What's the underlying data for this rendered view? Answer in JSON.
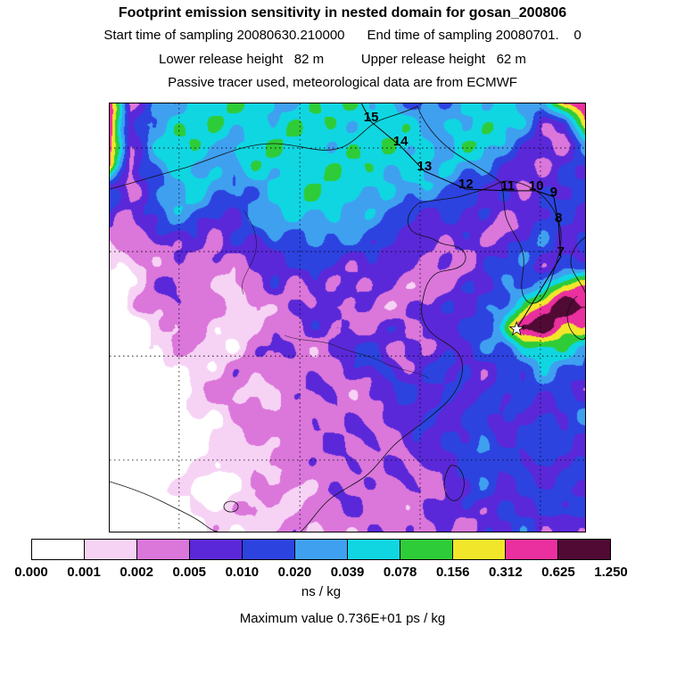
{
  "header": {
    "title": "Footprint emission sensitivity in nested domain for gosan_200806",
    "line2": "Start time of sampling 20080630.210000      End time of sampling 20080701.    0",
    "line3": "Lower release height   82 m          Upper release height   62 m",
    "line4": "Passive tracer used, meteorological data are from ECMWF"
  },
  "footer": {
    "units_label": "ns / kg",
    "max_value_label": "Maximum value  0.736E+01 ps / kg"
  },
  "chart_data": {
    "type": "heatmap",
    "title": "Footprint emission sensitivity in nested domain for gosan_200806",
    "units": "ns / kg",
    "max_value": "0.736E+01 ps / kg",
    "legend_position": "bottom",
    "levels": [
      0.0,
      0.001,
      0.002,
      0.005,
      0.01,
      0.02,
      0.039,
      0.078,
      0.156,
      0.312,
      0.625,
      1.25
    ],
    "level_labels": [
      "0.000",
      "0.001",
      "0.002",
      "0.005",
      "0.010",
      "0.020",
      "0.039",
      "0.078",
      "0.156",
      "0.312",
      "0.625",
      "1.250"
    ],
    "colors": [
      "#ffffff",
      "#f6d3f4",
      "#db76db",
      "#5a28d8",
      "#2c43e0",
      "#3fa0f0",
      "#10d6e2",
      "#2ecc38",
      "#f2e62a",
      "#ea2f9e",
      "#500a34"
    ],
    "grid": [
      [
        0.45,
        0.003,
        0.015,
        0.03,
        0.06,
        0.06,
        0.06,
        0.06,
        0.03,
        0.06,
        0.06,
        0.06,
        0.06,
        0.06,
        0.03,
        0.015,
        0.015,
        0.03,
        0.06,
        0.06,
        0.03,
        0.015,
        0.45,
        0.45
      ],
      [
        0.45,
        0.007,
        0.03,
        0.06,
        0.06,
        0.06,
        0.06,
        0.06,
        0.06,
        0.06,
        0.06,
        0.06,
        0.06,
        0.06,
        0.06,
        0.03,
        0.03,
        0.06,
        0.06,
        0.06,
        0.03,
        0.007,
        0.007,
        0.45
      ],
      [
        0.45,
        0.007,
        0.03,
        0.06,
        0.06,
        0.06,
        0.03,
        0.06,
        0.06,
        0.06,
        0.06,
        0.06,
        0.06,
        0.06,
        0.06,
        0.06,
        0.03,
        0.06,
        0.06,
        0.03,
        0.015,
        0.007,
        0.003,
        0.015
      ],
      [
        0.45,
        0.003,
        0.015,
        0.06,
        0.06,
        0.03,
        0.03,
        0.06,
        0.06,
        0.06,
        0.06,
        0.06,
        0.06,
        0.06,
        0.06,
        0.06,
        0.03,
        0.03,
        0.03,
        0.015,
        0.007,
        0.003,
        0.007,
        0.015
      ],
      [
        0.007,
        0.003,
        0.015,
        0.03,
        0.06,
        0.03,
        0.015,
        0.03,
        0.06,
        0.06,
        0.06,
        0.06,
        0.06,
        0.06,
        0.03,
        0.03,
        0.03,
        0.015,
        0.015,
        0.007,
        0.003,
        0.007,
        0.015,
        0.015
      ],
      [
        0.015,
        0.007,
        0.015,
        0.03,
        0.03,
        0.015,
        0.015,
        0.03,
        0.03,
        0.06,
        0.06,
        0.06,
        0.03,
        0.03,
        0.015,
        0.015,
        0.015,
        0.015,
        0.007,
        0.007,
        0.007,
        0.015,
        0.015,
        0.007
      ],
      [
        0.007,
        0.003,
        0.007,
        0.015,
        0.015,
        0.007,
        0.007,
        0.015,
        0.03,
        0.03,
        0.03,
        0.03,
        0.03,
        0.015,
        0.015,
        0.007,
        0.007,
        0.007,
        0.007,
        0.003,
        0.007,
        0.015,
        0.007,
        0.007
      ],
      [
        0.0012,
        0.003,
        0.003,
        0.007,
        0.007,
        0.003,
        0.007,
        0.007,
        0.015,
        0.015,
        0.015,
        0.015,
        0.015,
        0.015,
        0.007,
        0.007,
        0.003,
        0.007,
        0.007,
        0.007,
        0.015,
        0.015,
        0.007,
        0.015
      ],
      [
        0.0012,
        0.0012,
        0.003,
        0.003,
        0.003,
        0.003,
        0.003,
        0.007,
        0.007,
        0.007,
        0.015,
        0.007,
        0.007,
        0.007,
        0.007,
        0.003,
        0.007,
        0.003,
        0.007,
        0.015,
        0.015,
        0.007,
        0.015,
        0.015
      ],
      [
        0.0003,
        0.0012,
        0.003,
        0.007,
        0.003,
        0.003,
        0.0012,
        0.003,
        0.007,
        0.003,
        0.007,
        0.007,
        0.003,
        0.007,
        0.003,
        0.003,
        0.003,
        0.007,
        0.007,
        0.015,
        0.03,
        0.03,
        0.22,
        0.22
      ],
      [
        0.0003,
        0.0012,
        0.003,
        0.003,
        0.007,
        0.003,
        0.0012,
        0.0012,
        0.003,
        0.007,
        0.007,
        0.003,
        0.007,
        0.003,
        0.003,
        0.007,
        0.007,
        0.007,
        0.015,
        0.03,
        0.06,
        0.45,
        1.1,
        1.1
      ],
      [
        0.0003,
        0.0003,
        0.0012,
        0.003,
        0.003,
        0.0012,
        0.0012,
        0.003,
        0.003,
        0.003,
        0.007,
        0.007,
        0.003,
        0.007,
        0.007,
        0.003,
        0.007,
        0.015,
        0.015,
        0.03,
        1.0,
        1.1,
        0.45,
        0.22
      ],
      [
        0.0003,
        0.0003,
        0.0012,
        0.0012,
        0.003,
        0.0012,
        0.0012,
        0.003,
        0.007,
        0.003,
        0.003,
        0.007,
        0.015,
        0.007,
        0.003,
        0.007,
        0.007,
        0.007,
        0.015,
        0.015,
        0.06,
        0.12,
        0.06,
        0.03
      ],
      [
        0.0003,
        0.0003,
        0.0003,
        0.0012,
        0.0012,
        0.0012,
        0.003,
        0.003,
        0.003,
        0.007,
        0.003,
        0.003,
        0.007,
        0.015,
        0.007,
        0.007,
        0.015,
        0.007,
        0.007,
        0.015,
        0.015,
        0.03,
        0.015,
        0.015
      ],
      [
        0.0003,
        0.0003,
        0.0003,
        0.0003,
        0.0012,
        0.003,
        0.003,
        0.0012,
        0.003,
        0.003,
        0.007,
        0.003,
        0.003,
        0.007,
        0.015,
        0.007,
        0.007,
        0.015,
        0.007,
        0.015,
        0.007,
        0.015,
        0.015,
        0.007
      ],
      [
        0.0003,
        0.0003,
        0.0003,
        0.0003,
        0.0012,
        0.0012,
        0.003,
        0.003,
        0.0012,
        0.003,
        0.003,
        0.007,
        0.003,
        0.003,
        0.007,
        0.007,
        0.015,
        0.007,
        0.015,
        0.007,
        0.015,
        0.007,
        0.015,
        0.015
      ],
      [
        0.0003,
        0.0003,
        0.0003,
        0.0003,
        0.0003,
        0.0012,
        0.0012,
        0.003,
        0.003,
        0.003,
        0.007,
        0.003,
        0.007,
        0.003,
        0.007,
        0.015,
        0.007,
        0.007,
        0.015,
        0.007,
        0.015,
        0.015,
        0.007,
        0.015
      ],
      [
        0.0003,
        0.0003,
        0.0003,
        0.0003,
        0.0003,
        0.0012,
        0.0012,
        0.0012,
        0.003,
        0.003,
        0.003,
        0.007,
        0.003,
        0.007,
        0.003,
        0.007,
        0.007,
        0.015,
        0.03,
        0.015,
        0.007,
        0.015,
        0.015,
        0.007
      ],
      [
        0.0003,
        0.0003,
        0.0003,
        0.0003,
        0.0012,
        0.0012,
        0.0012,
        0.003,
        0.0012,
        0.003,
        0.003,
        0.003,
        0.007,
        0.003,
        0.007,
        0.003,
        0.007,
        0.015,
        0.015,
        0.007,
        0.015,
        0.007,
        0.015,
        0.015
      ],
      [
        0.0003,
        0.0003,
        0.0003,
        0.0012,
        0.0012,
        0.0003,
        0.0012,
        0.0012,
        0.003,
        0.0012,
        0.003,
        0.007,
        0.003,
        0.003,
        0.003,
        0.007,
        0.003,
        0.007,
        0.015,
        0.007,
        0.015,
        0.015,
        0.007,
        0.007
      ],
      [
        0.0003,
        0.0003,
        0.0003,
        0.0003,
        0.0012,
        0.0012,
        0.0012,
        0.003,
        0.0012,
        0.003,
        0.003,
        0.003,
        0.007,
        0.003,
        0.003,
        0.003,
        0.007,
        0.007,
        0.007,
        0.015,
        0.007,
        0.007,
        0.015,
        0.015
      ],
      [
        0.0003,
        0.0003,
        0.0003,
        0.0003,
        0.0003,
        0.0012,
        0.0012,
        0.0012,
        0.003,
        0.003,
        0.0012,
        0.003,
        0.003,
        0.007,
        0.003,
        0.003,
        0.007,
        0.003,
        0.007,
        0.007,
        0.015,
        0.007,
        0.007,
        0.007
      ]
    ],
    "trajectory": {
      "days": [
        {
          "label": "15",
          "fx": 0.55,
          "fy": 0.031
        },
        {
          "label": "14",
          "fx": 0.612,
          "fy": 0.088
        },
        {
          "label": "13",
          "fx": 0.662,
          "fy": 0.146
        },
        {
          "label": "12",
          "fx": 0.749,
          "fy": 0.188
        },
        {
          "label": "11",
          "fx": 0.837,
          "fy": 0.192
        },
        {
          "label": "10",
          "fx": 0.897,
          "fy": 0.192
        },
        {
          "label": "9",
          "fx": 0.934,
          "fy": 0.206
        },
        {
          "label": "8",
          "fx": 0.944,
          "fy": 0.267
        },
        {
          "label": "7",
          "fx": 0.949,
          "fy": 0.346
        }
      ],
      "receptor": {
        "fx": 0.856,
        "fy": 0.527,
        "symbol": "star"
      }
    }
  }
}
